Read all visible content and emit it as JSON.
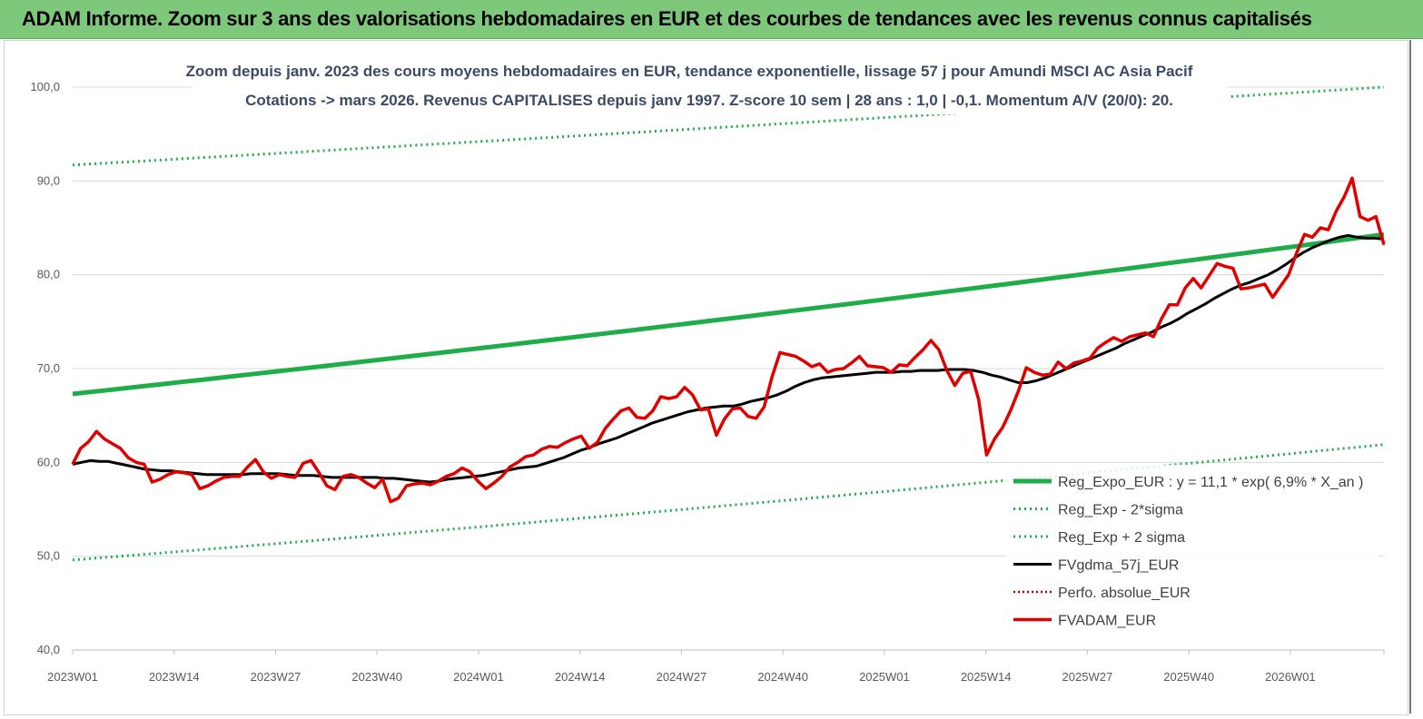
{
  "banner": {
    "title": "ADAM Informe. Zoom sur 3 ans des valorisations hebdomadaires en EUR et des courbes de tendances avec les revenus connus capitalisés"
  },
  "chart_data": {
    "type": "line",
    "title_line1": "Zoom depuis janv. 2023 des cours moyens hebdomadaires en EUR, tendance exponentielle, lissage 57 j pour Amundi MSCI AC Asia Pacif",
    "title_line2": "Cotations -> mars 2026. Revenus CAPITALISES depuis janv 1997. Z-score 10 sem | 28 ans : 1,0 | -0,1. Momentum A/V (20/0): 20.",
    "ylim": [
      40,
      100
    ],
    "yticks": [
      "100,0",
      "90,0",
      "80,0",
      "70,0",
      "60,0",
      "50,0",
      "40,0"
    ],
    "xticks": [
      "2023W01",
      "2023W14",
      "2023W27",
      "2023W40",
      "2024W01",
      "2024W14",
      "2024W27",
      "2024W40",
      "2025W01",
      "2025W14",
      "2025W27",
      "2025W40",
      "2026W01"
    ],
    "grid": true,
    "legend_position": "bottom-right",
    "colors": {
      "trend": "#1fad4a",
      "band": "#1fad4a",
      "smooth": "#000000",
      "perf": "#c00000",
      "price": "#e00000"
    },
    "series": [
      {
        "name": "Reg_Expo_EUR : y = 11,1 * exp( 6,9% *  X_an )",
        "style": "solid-thick",
        "color": "#1fad4a",
        "start": 67.3,
        "end": 84.3
      },
      {
        "name": "Reg_Exp - 2*sigma",
        "style": "dotted",
        "color": "#1fad4a",
        "start": 49.6,
        "end": 61.9
      },
      {
        "name": "Reg_Exp + 2 sigma",
        "style": "dotted",
        "color": "#1fad4a",
        "start": 91.7,
        "end": 100.0
      },
      {
        "name": "FVgdma_57j_EUR",
        "style": "solid",
        "color": "#000000",
        "values": [
          59.8,
          60.0,
          60.2,
          60.1,
          60.1,
          59.9,
          59.7,
          59.5,
          59.3,
          59.2,
          59.1,
          59.1,
          59.0,
          58.9,
          58.8,
          58.7,
          58.7,
          58.7,
          58.7,
          58.7,
          58.8,
          58.8,
          58.8,
          58.8,
          58.7,
          58.6,
          58.6,
          58.6,
          58.5,
          58.4,
          58.4,
          58.4,
          58.4,
          58.4,
          58.4,
          58.3,
          58.3,
          58.2,
          58.1,
          58.0,
          57.9,
          58.0,
          58.2,
          58.3,
          58.4,
          58.5,
          58.6,
          58.8,
          59.0,
          59.2,
          59.4,
          59.5,
          59.6,
          59.9,
          60.2,
          60.5,
          60.9,
          61.3,
          61.6,
          62.0,
          62.3,
          62.6,
          63.0,
          63.4,
          63.8,
          64.2,
          64.5,
          64.8,
          65.1,
          65.4,
          65.6,
          65.8,
          65.9,
          66.0,
          66.0,
          66.2,
          66.5,
          66.7,
          66.9,
          67.2,
          67.6,
          68.1,
          68.5,
          68.8,
          69.0,
          69.1,
          69.2,
          69.3,
          69.4,
          69.5,
          69.6,
          69.6,
          69.6,
          69.7,
          69.7,
          69.8,
          69.8,
          69.8,
          69.9,
          69.9,
          69.9,
          69.8,
          69.6,
          69.3,
          69.1,
          68.8,
          68.5,
          68.5,
          68.7,
          69.0,
          69.4,
          69.8,
          70.2,
          70.6,
          71.0,
          71.4,
          71.8,
          72.2,
          72.7,
          73.1,
          73.5,
          73.9,
          74.4,
          74.8,
          75.3,
          75.9,
          76.4,
          76.9,
          77.5,
          78.0,
          78.5,
          78.9,
          79.2,
          79.6,
          80.0,
          80.5,
          81.1,
          81.8,
          82.4,
          82.9,
          83.3,
          83.7,
          84.0,
          84.2,
          84.0,
          83.9,
          83.9,
          83.8
        ]
      },
      {
        "name": "Perfo. absolue_EUR",
        "style": "dotted",
        "color": "#c00000"
      },
      {
        "name": "FVADAM_EUR",
        "style": "solid-thick",
        "color": "#e00000",
        "values": [
          59.8,
          61.5,
          62.2,
          63.3,
          62.5,
          62.0,
          61.5,
          60.5,
          60.0,
          59.8,
          57.9,
          58.2,
          58.7,
          59.0,
          58.9,
          58.7,
          57.2,
          57.5,
          58.0,
          58.4,
          58.5,
          58.5,
          59.5,
          60.3,
          59.0,
          58.3,
          58.7,
          58.5,
          58.4,
          59.9,
          60.2,
          58.9,
          57.5,
          57.1,
          58.5,
          58.7,
          58.4,
          57.8,
          57.3,
          58.2,
          55.8,
          56.2,
          57.5,
          57.7,
          57.8,
          57.6,
          58.0,
          58.5,
          58.8,
          59.4,
          59.0,
          58.0,
          57.2,
          57.8,
          58.5,
          59.5,
          60.0,
          60.6,
          60.8,
          61.4,
          61.7,
          61.6,
          62.1,
          62.5,
          62.8,
          61.5,
          62.1,
          63.6,
          64.6,
          65.5,
          65.8,
          64.8,
          64.7,
          65.5,
          67.0,
          66.8,
          67.0,
          68.0,
          67.2,
          65.6,
          65.7,
          62.9,
          64.6,
          65.7,
          65.8,
          64.9,
          64.7,
          65.9,
          69.1,
          71.7,
          71.5,
          71.3,
          70.8,
          70.2,
          70.5,
          69.6,
          69.9,
          70.0,
          70.6,
          71.3,
          70.3,
          70.2,
          70.1,
          69.6,
          70.4,
          70.3,
          71.2,
          72.0,
          73.0,
          72.0,
          69.8,
          68.2,
          69.5,
          69.7,
          66.7,
          60.8,
          62.5,
          63.7,
          65.5,
          67.6,
          70.1,
          69.6,
          69.3,
          69.4,
          70.7,
          70.0,
          70.6,
          70.8,
          71.1,
          72.2,
          72.8,
          73.3,
          72.9,
          73.4,
          73.6,
          73.8,
          73.4,
          75.3,
          76.8,
          76.8,
          78.6,
          79.6,
          78.6,
          79.9,
          81.2,
          80.9,
          80.7,
          78.5,
          78.6,
          78.8,
          79.0,
          77.6,
          78.8,
          80.0,
          82.3,
          84.3,
          84.0,
          85.0,
          84.8,
          86.8,
          88.3,
          90.3,
          86.2,
          85.8,
          86.2,
          83.2
        ]
      }
    ]
  }
}
